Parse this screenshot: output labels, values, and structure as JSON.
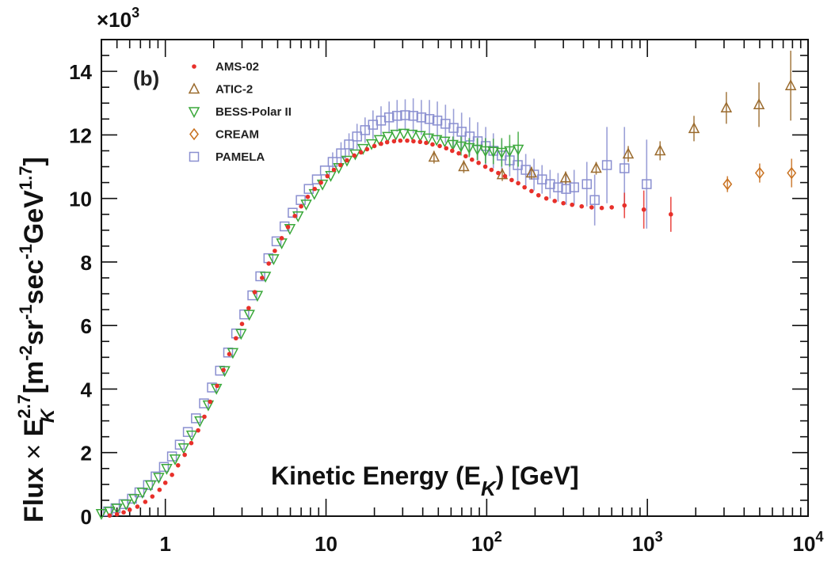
{
  "chart_data": {
    "type": "scatter",
    "panel_label": "(b)",
    "xlabel": {
      "main": "Kinetic Energy (E",
      "sub": "K",
      "tail": ")  [GeV]"
    },
    "ylabel": {
      "flux": "Flux ",
      "times": "×",
      "e": " E",
      "e_sup": "2.7",
      "e_sub": "K",
      "units_open": "  [m",
      "m_sup": "-2",
      "sr": "sr",
      "sr_sup": "-1",
      "sec": "sec",
      "sec_sup": "-1",
      "gev": "GeV",
      "gev_sup": "1.7",
      "units_close": "]"
    },
    "y_multiplier": {
      "base": "×10",
      "exp": "3"
    },
    "x_scale": "log",
    "xlim": [
      0.4,
      10000
    ],
    "ylim": [
      0,
      15
    ],
    "x_ticks": [
      {
        "value": 1,
        "base": "1",
        "exp": ""
      },
      {
        "value": 10,
        "base": "10",
        "exp": ""
      },
      {
        "value": 100,
        "base": "10",
        "exp": "2"
      },
      {
        "value": 1000,
        "base": "10",
        "exp": "3"
      },
      {
        "value": 10000,
        "base": "10",
        "exp": "4"
      }
    ],
    "y_ticks": [
      0,
      2,
      4,
      6,
      8,
      10,
      12,
      14
    ],
    "legend_position": "top-left",
    "series": [
      {
        "name": "AMS-02",
        "marker": "dot",
        "color": "#e8302a",
        "points": [
          [
            0.45,
            0.02
          ],
          [
            0.5,
            0.06
          ],
          [
            0.55,
            0.12
          ],
          [
            0.6,
            0.2
          ],
          [
            0.67,
            0.3
          ],
          [
            0.75,
            0.45
          ],
          [
            0.83,
            0.62
          ],
          [
            0.92,
            0.83
          ],
          [
            1.0,
            1.05
          ],
          [
            1.1,
            1.3
          ],
          [
            1.2,
            1.6
          ],
          [
            1.32,
            1.93
          ],
          [
            1.45,
            2.3
          ],
          [
            1.6,
            2.7
          ],
          [
            1.75,
            3.13
          ],
          [
            1.9,
            3.6
          ],
          [
            2.1,
            4.1
          ],
          [
            2.3,
            4.6
          ],
          [
            2.5,
            5.1
          ],
          [
            2.75,
            5.6
          ],
          [
            3.0,
            6.05
          ],
          [
            3.3,
            6.55
          ],
          [
            3.6,
            7.05
          ],
          [
            4.0,
            7.5
          ],
          [
            4.4,
            7.95
          ],
          [
            4.8,
            8.35
          ],
          [
            5.3,
            8.75
          ],
          [
            5.8,
            9.1
          ],
          [
            6.4,
            9.45
          ],
          [
            7.0,
            9.75
          ],
          [
            7.7,
            10.05
          ],
          [
            8.5,
            10.3
          ],
          [
            9.3,
            10.5
          ],
          [
            10.2,
            10.7
          ],
          [
            11.2,
            10.9
          ],
          [
            12.3,
            11.05
          ],
          [
            13.5,
            11.2
          ],
          [
            15,
            11.35
          ],
          [
            16.5,
            11.45
          ],
          [
            18,
            11.55
          ],
          [
            20,
            11.65
          ],
          [
            22,
            11.72
          ],
          [
            24,
            11.77
          ],
          [
            26.5,
            11.8
          ],
          [
            29,
            11.82
          ],
          [
            32,
            11.82
          ],
          [
            35,
            11.8
          ],
          [
            38.5,
            11.78
          ],
          [
            42,
            11.75
          ],
          [
            46,
            11.7
          ],
          [
            51,
            11.65
          ],
          [
            56,
            11.58
          ],
          [
            61,
            11.5
          ],
          [
            67,
            11.42
          ],
          [
            74,
            11.33
          ],
          [
            81,
            11.22
          ],
          [
            89,
            11.12
          ],
          [
            98,
            11.0
          ],
          [
            107,
            10.9
          ],
          [
            118,
            10.8
          ],
          [
            130,
            10.7
          ],
          [
            143,
            10.58
          ],
          [
            157,
            10.48
          ],
          [
            172,
            10.35
          ],
          [
            190,
            10.23
          ],
          [
            210,
            10.1
          ],
          [
            235,
            10.0
          ],
          [
            265,
            9.92
          ],
          [
            300,
            9.85
          ],
          [
            340,
            9.8
          ],
          [
            390,
            9.75
          ],
          [
            450,
            9.72
          ],
          [
            520,
            9.7
          ],
          [
            600,
            9.72
          ],
          [
            720,
            9.78
          ],
          [
            950,
            9.65
          ],
          [
            1400,
            9.5
          ]
        ],
        "errors": [
          [
            720,
            0.4
          ],
          [
            950,
            0.6
          ],
          [
            1400,
            0.55
          ]
        ]
      },
      {
        "name": "ATIC-2",
        "marker": "triangle-up",
        "color": "#9a6a2c",
        "points": [
          [
            47,
            11.3
          ],
          [
            72,
            11.0
          ],
          [
            125,
            10.75
          ],
          [
            190,
            10.8
          ],
          [
            310,
            10.65
          ],
          [
            480,
            10.95
          ],
          [
            760,
            11.4
          ],
          [
            1200,
            11.5
          ],
          [
            1950,
            12.2
          ],
          [
            3100,
            12.85
          ],
          [
            4950,
            12.95
          ],
          [
            7800,
            13.55
          ]
        ],
        "errors": [
          [
            47,
            0.2
          ],
          [
            72,
            0.2
          ],
          [
            125,
            0.2
          ],
          [
            190,
            0.2
          ],
          [
            310,
            0.2
          ],
          [
            480,
            0.2
          ],
          [
            760,
            0.25
          ],
          [
            1200,
            0.3
          ],
          [
            1950,
            0.4
          ],
          [
            3100,
            0.5
          ],
          [
            4950,
            0.7
          ],
          [
            7800,
            1.1
          ]
        ]
      },
      {
        "name": "BESS-Polar II",
        "marker": "triangle-down",
        "color": "#3aa83a",
        "points": [
          [
            0.4,
            0.08
          ],
          [
            0.45,
            0.15
          ],
          [
            0.5,
            0.25
          ],
          [
            0.57,
            0.38
          ],
          [
            0.64,
            0.55
          ],
          [
            0.72,
            0.75
          ],
          [
            0.81,
            0.98
          ],
          [
            0.91,
            1.22
          ],
          [
            1.02,
            1.5
          ],
          [
            1.15,
            1.8
          ],
          [
            1.3,
            2.15
          ],
          [
            1.46,
            2.55
          ],
          [
            1.64,
            3.0
          ],
          [
            1.85,
            3.5
          ],
          [
            2.08,
            4.02
          ],
          [
            2.34,
            4.58
          ],
          [
            2.63,
            5.15
          ],
          [
            2.96,
            5.75
          ],
          [
            3.33,
            6.35
          ],
          [
            3.74,
            6.95
          ],
          [
            4.2,
            7.55
          ],
          [
            4.72,
            8.1
          ],
          [
            5.3,
            8.6
          ],
          [
            5.96,
            9.05
          ],
          [
            6.7,
            9.45
          ],
          [
            7.53,
            9.82
          ],
          [
            8.46,
            10.15
          ],
          [
            9.51,
            10.45
          ],
          [
            10.7,
            10.72
          ],
          [
            12.0,
            10.97
          ],
          [
            13.5,
            11.2
          ],
          [
            15.2,
            11.4
          ],
          [
            17.0,
            11.57
          ],
          [
            19.2,
            11.72
          ],
          [
            21.5,
            11.85
          ],
          [
            24.2,
            11.95
          ],
          [
            27.2,
            12.02
          ],
          [
            30.5,
            12.05
          ],
          [
            34.3,
            12.02
          ],
          [
            38.6,
            11.98
          ],
          [
            43.4,
            11.9
          ],
          [
            48.8,
            11.85
          ],
          [
            54.8,
            11.8
          ],
          [
            61.6,
            11.7
          ],
          [
            69.2,
            11.65
          ],
          [
            77.8,
            11.6
          ],
          [
            87.4,
            11.55
          ],
          [
            98.2,
            11.5
          ],
          [
            110,
            11.48
          ],
          [
            124,
            11.45
          ],
          [
            139,
            11.5
          ],
          [
            157,
            11.55
          ]
        ],
        "errors": [
          [
            61.6,
            0.25
          ],
          [
            69.2,
            0.3
          ],
          [
            77.8,
            0.3
          ],
          [
            87.4,
            0.35
          ],
          [
            98.2,
            0.4
          ],
          [
            110,
            0.4
          ],
          [
            124,
            0.45
          ],
          [
            139,
            0.5
          ],
          [
            157,
            0.55
          ]
        ]
      },
      {
        "name": "CREAM",
        "marker": "diamond",
        "color": "#c8701e",
        "points": [
          [
            3150,
            10.45
          ],
          [
            5000,
            10.8
          ],
          [
            7900,
            10.8
          ]
        ],
        "errors": [
          [
            3150,
            0.25
          ],
          [
            5000,
            0.3
          ],
          [
            7900,
            0.45
          ]
        ]
      },
      {
        "name": "PAMELA",
        "marker": "square",
        "color": "#8a8fd0",
        "points": [
          [
            0.44,
            0.15
          ],
          [
            0.49,
            0.25
          ],
          [
            0.55,
            0.38
          ],
          [
            0.62,
            0.55
          ],
          [
            0.69,
            0.75
          ],
          [
            0.78,
            0.98
          ],
          [
            0.87,
            1.25
          ],
          [
            0.98,
            1.55
          ],
          [
            1.1,
            1.88
          ],
          [
            1.23,
            2.25
          ],
          [
            1.38,
            2.65
          ],
          [
            1.55,
            3.08
          ],
          [
            1.74,
            3.55
          ],
          [
            1.95,
            4.05
          ],
          [
            2.19,
            4.58
          ],
          [
            2.46,
            5.15
          ],
          [
            2.76,
            5.75
          ],
          [
            3.1,
            6.35
          ],
          [
            3.48,
            6.95
          ],
          [
            3.9,
            7.55
          ],
          [
            4.38,
            8.12
          ],
          [
            4.92,
            8.65
          ],
          [
            5.52,
            9.12
          ],
          [
            6.2,
            9.55
          ],
          [
            6.96,
            9.95
          ],
          [
            7.81,
            10.3
          ],
          [
            8.77,
            10.6
          ],
          [
            9.84,
            10.88
          ],
          [
            11.0,
            11.15
          ],
          [
            12.4,
            11.42
          ],
          [
            13.9,
            11.7
          ],
          [
            15.6,
            11.95
          ],
          [
            17.5,
            12.15
          ],
          [
            19.6,
            12.32
          ],
          [
            22.0,
            12.45
          ],
          [
            24.7,
            12.55
          ],
          [
            27.7,
            12.6
          ],
          [
            31.1,
            12.62
          ],
          [
            34.9,
            12.6
          ],
          [
            39.2,
            12.55
          ],
          [
            44.0,
            12.5
          ],
          [
            49.3,
            12.45
          ],
          [
            55.4,
            12.35
          ],
          [
            62.2,
            12.22
          ],
          [
            69.8,
            12.1
          ],
          [
            78.3,
            11.95
          ],
          [
            87.9,
            11.8
          ],
          [
            98.6,
            11.65
          ],
          [
            110,
            11.5
          ],
          [
            124,
            11.35
          ],
          [
            139,
            11.2
          ],
          [
            156,
            11.05
          ],
          [
            175,
            10.9
          ],
          [
            197,
            10.75
          ],
          [
            221,
            10.6
          ],
          [
            248,
            10.45
          ],
          [
            278,
            10.35
          ],
          [
            312,
            10.3
          ],
          [
            350,
            10.35
          ],
          [
            420,
            10.45
          ],
          [
            470,
            9.95
          ],
          [
            560,
            11.05
          ],
          [
            720,
            10.95
          ],
          [
            990,
            10.45
          ]
        ],
        "errors": [
          [
            11.0,
            0.3
          ],
          [
            12.4,
            0.35
          ],
          [
            13.9,
            0.35
          ],
          [
            15.6,
            0.4
          ],
          [
            17.5,
            0.4
          ],
          [
            19.6,
            0.45
          ],
          [
            22.0,
            0.45
          ],
          [
            24.7,
            0.5
          ],
          [
            27.7,
            0.5
          ],
          [
            31.1,
            0.5
          ],
          [
            34.9,
            0.55
          ],
          [
            39.2,
            0.55
          ],
          [
            44.0,
            0.6
          ],
          [
            49.3,
            0.6
          ],
          [
            55.4,
            0.6
          ],
          [
            62.2,
            0.6
          ],
          [
            69.8,
            0.6
          ],
          [
            78.3,
            0.6
          ],
          [
            87.9,
            0.6
          ],
          [
            98.6,
            0.6
          ],
          [
            110,
            0.55
          ],
          [
            124,
            0.5
          ],
          [
            139,
            0.5
          ],
          [
            156,
            0.5
          ],
          [
            175,
            0.5
          ],
          [
            197,
            0.5
          ],
          [
            221,
            0.45
          ],
          [
            248,
            0.45
          ],
          [
            278,
            0.45
          ],
          [
            312,
            0.5
          ],
          [
            350,
            0.55
          ],
          [
            420,
            0.7
          ],
          [
            470,
            0.8
          ],
          [
            560,
            1.2
          ],
          [
            720,
            1.3
          ],
          [
            990,
            1.4
          ]
        ]
      }
    ]
  }
}
